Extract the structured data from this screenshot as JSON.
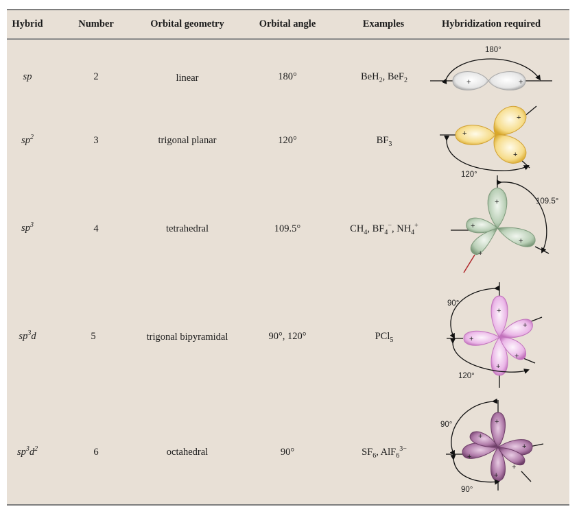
{
  "headers": {
    "hybrid": "Hybrid",
    "number": "Number",
    "geometry": "Orbital geometry",
    "angle": "Orbital angle",
    "examples": "Examples",
    "hybridization": "Hybridization required"
  },
  "rows": [
    {
      "hybrid": {
        "base": "sp",
        "sup1": "",
        "mid": "",
        "sup2": ""
      },
      "number": "2",
      "geometry": "linear",
      "angle": "180°",
      "examples": "BeH2, BeF2",
      "diagram_angles": [
        "180°"
      ]
    },
    {
      "hybrid": {
        "base": "sp",
        "sup1": "2",
        "mid": "",
        "sup2": ""
      },
      "number": "3",
      "geometry": "trigonal planar",
      "angle": "120°",
      "examples": "BF3",
      "diagram_angles": [
        "120°"
      ]
    },
    {
      "hybrid": {
        "base": "sp",
        "sup1": "3",
        "mid": "",
        "sup2": ""
      },
      "number": "4",
      "geometry": "tetrahedral",
      "angle": "109.5°",
      "examples": "CH4, BF4-, NH4+",
      "diagram_angles": [
        "109.5°"
      ]
    },
    {
      "hybrid": {
        "base": "sp",
        "sup1": "3",
        "mid": "d",
        "sup2": ""
      },
      "number": "5",
      "geometry": "trigonal bipyramidal",
      "angle": "90°, 120°",
      "examples": "PCl5",
      "diagram_angles": [
        "90°",
        "120°"
      ]
    },
    {
      "hybrid": {
        "base": "sp",
        "sup1": "3",
        "mid": "d",
        "sup2": "2"
      },
      "number": "6",
      "geometry": "octahedral",
      "angle": "90°",
      "examples": "SF6, AlF63-",
      "diagram_angles": [
        "90°",
        "90°"
      ]
    }
  ],
  "lobe_colors": {
    "sp": "#d6d6d6",
    "sp2": "#f3cf6e",
    "sp3": "#a9c3a8",
    "sp3d": "#e7a6e4",
    "sp3d2": "#a36f9c"
  }
}
